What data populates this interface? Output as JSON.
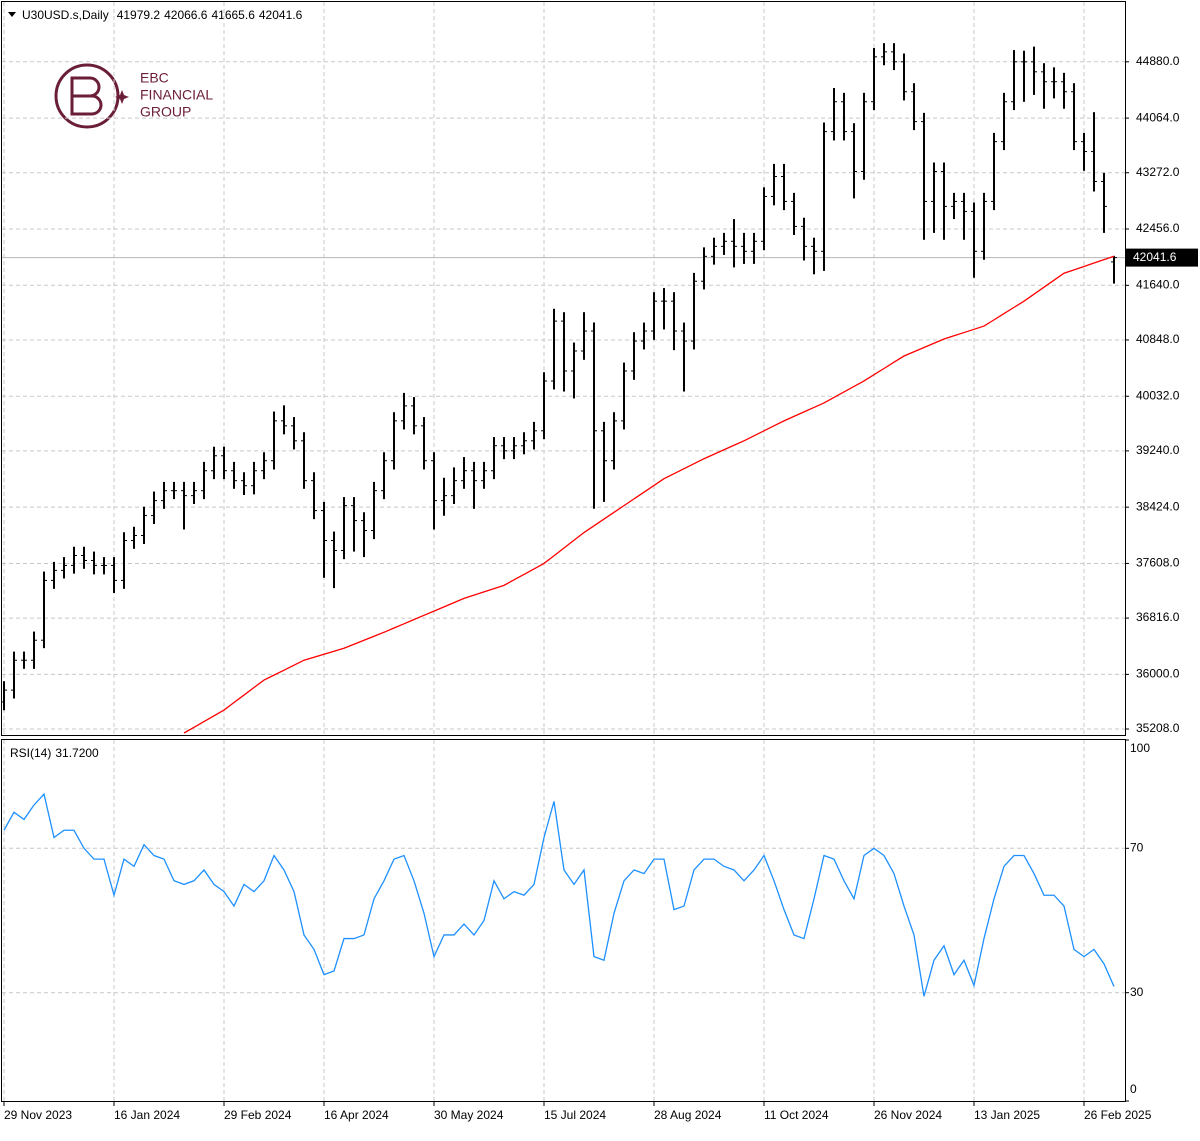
{
  "chart_data": {
    "type": "ohlc",
    "symbol": "U30USD.s,Daily",
    "logo": [
      "EBC",
      "FINANCIAL",
      "GROUP"
    ],
    "categories": [
      "29 Nov 2023",
      null,
      null,
      null,
      null,
      null,
      null,
      null,
      null,
      null,
      null,
      "16 Jan 2024",
      null,
      null,
      null,
      null,
      null,
      null,
      null,
      null,
      null,
      null,
      "29 Feb 2024",
      null,
      null,
      null,
      null,
      null,
      null,
      null,
      null,
      null,
      "16 Apr 2024",
      null,
      null,
      null,
      null,
      null,
      null,
      null,
      null,
      null,
      null,
      "30 May 2024",
      null,
      null,
      null,
      null,
      null,
      null,
      null,
      null,
      null,
      null,
      "15 Jul 2024",
      null,
      null,
      null,
      null,
      null,
      null,
      null,
      null,
      null,
      null,
      "28 Aug 2024",
      null,
      null,
      null,
      null,
      null,
      null,
      null,
      null,
      null,
      null,
      "11 Oct 2024",
      null,
      null,
      null,
      null,
      null,
      null,
      null,
      null,
      null,
      null,
      "26 Nov 2024",
      null,
      null,
      null,
      null,
      null,
      null,
      null,
      null,
      null,
      "13 Jan 2025",
      null,
      null,
      null,
      null,
      null,
      null,
      null,
      null,
      null,
      null,
      "26 Feb 2025",
      null,
      null,
      null
    ],
    "ohlc": [
      [
        35600,
        35900,
        35480,
        35772
      ],
      [
        35772,
        36330,
        35650,
        36205
      ],
      [
        36205,
        36330,
        36080,
        36205
      ],
      [
        36205,
        36620,
        36080,
        36495
      ],
      [
        36495,
        37490,
        36380,
        37362
      ],
      [
        37362,
        37630,
        37240,
        37507
      ],
      [
        37507,
        37700,
        37390,
        37579
      ],
      [
        37579,
        37850,
        37460,
        37723
      ],
      [
        37723,
        37850,
        37530,
        37651
      ],
      [
        37651,
        37780,
        37450,
        37579
      ],
      [
        37579,
        37700,
        37450,
        37579
      ],
      [
        37579,
        37700,
        37180,
        37362
      ],
      [
        37362,
        38060,
        37240,
        37940
      ],
      [
        37940,
        38140,
        37820,
        38013
      ],
      [
        38013,
        38430,
        37890,
        38302
      ],
      [
        38302,
        38650,
        38180,
        38519
      ],
      [
        38519,
        38790,
        38400,
        38663
      ],
      [
        38663,
        38790,
        38540,
        38663
      ],
      [
        38663,
        38790,
        38100,
        38591
      ],
      [
        38591,
        38790,
        38470,
        38663
      ],
      [
        38663,
        39080,
        38540,
        38952
      ],
      [
        38952,
        39300,
        38830,
        39169
      ],
      [
        39169,
        39300,
        38830,
        38952
      ],
      [
        38952,
        39080,
        38690,
        38808
      ],
      [
        38808,
        38930,
        38600,
        38735
      ],
      [
        38735,
        39080,
        38610,
        38952
      ],
      [
        38952,
        39220,
        38830,
        39097
      ],
      [
        39097,
        39810,
        38970,
        39675
      ],
      [
        39675,
        39900,
        39480,
        39603
      ],
      [
        39603,
        39730,
        39260,
        39386
      ],
      [
        39386,
        39510,
        38690,
        38808
      ],
      [
        38808,
        38930,
        38250,
        38374
      ],
      [
        38374,
        38500,
        37400,
        37940
      ],
      [
        37940,
        38070,
        37250,
        37796
      ],
      [
        37796,
        38570,
        37670,
        38446
      ],
      [
        38446,
        38570,
        37780,
        38229
      ],
      [
        38229,
        38350,
        37700,
        38085
      ],
      [
        38085,
        38790,
        37960,
        38663
      ],
      [
        38663,
        39220,
        38540,
        39097
      ],
      [
        39097,
        39800,
        38970,
        39675
      ],
      [
        39675,
        40080,
        39550,
        39892
      ],
      [
        39892,
        40020,
        39480,
        39603
      ],
      [
        39603,
        39730,
        38970,
        39097
      ],
      [
        39097,
        39220,
        38100,
        38519
      ],
      [
        38519,
        38850,
        38300,
        38591
      ],
      [
        38591,
        39000,
        38470,
        38808
      ],
      [
        38808,
        39150,
        38690,
        38952
      ],
      [
        38952,
        39080,
        38400,
        38808
      ],
      [
        38808,
        39080,
        38690,
        38952
      ],
      [
        38952,
        39440,
        38830,
        39314
      ],
      [
        39314,
        39440,
        39120,
        39241
      ],
      [
        39241,
        39440,
        39120,
        39314
      ],
      [
        39314,
        39510,
        39190,
        39386
      ],
      [
        39386,
        39660,
        39260,
        39531
      ],
      [
        39531,
        40380,
        39410,
        40253
      ],
      [
        40253,
        41300,
        40130,
        41121
      ],
      [
        41121,
        41250,
        40100,
        40398
      ],
      [
        40398,
        40810,
        40000,
        40688
      ],
      [
        40688,
        41250,
        40560,
        40977
      ],
      [
        40977,
        41100,
        38400,
        39531
      ],
      [
        39531,
        39660,
        38500,
        39097
      ],
      [
        39097,
        39800,
        38970,
        39675
      ],
      [
        39675,
        40520,
        39550,
        40398
      ],
      [
        40398,
        40960,
        40270,
        40832
      ],
      [
        40832,
        41100,
        40710,
        40977
      ],
      [
        40977,
        41540,
        40850,
        41410
      ],
      [
        41410,
        41600,
        41000,
        41410
      ],
      [
        41410,
        41540,
        40700,
        40977
      ],
      [
        40977,
        41100,
        40100,
        40832
      ],
      [
        40832,
        41820,
        40710,
        41699
      ],
      [
        41699,
        42190,
        41580,
        42060
      ],
      [
        42060,
        42330,
        41940,
        42205
      ],
      [
        42205,
        42400,
        42080,
        42278
      ],
      [
        42278,
        42600,
        41900,
        42205
      ],
      [
        42205,
        42400,
        41950,
        42133
      ],
      [
        42133,
        42400,
        41950,
        42278
      ],
      [
        42278,
        43060,
        42150,
        42928
      ],
      [
        42928,
        43400,
        42800,
        43217
      ],
      [
        43217,
        43400,
        42730,
        42856
      ],
      [
        42856,
        42980,
        42370,
        42494
      ],
      [
        42494,
        42620,
        42000,
        42205
      ],
      [
        42205,
        42330,
        41800,
        42133
      ],
      [
        42133,
        44000,
        41850,
        43868
      ],
      [
        43868,
        44500,
        43740,
        44301
      ],
      [
        44301,
        44430,
        43740,
        43868
      ],
      [
        43868,
        43990,
        42900,
        43290
      ],
      [
        43290,
        44430,
        43170,
        44301
      ],
      [
        44301,
        45080,
        44180,
        44952
      ],
      [
        44952,
        45150,
        44830,
        45024
      ],
      [
        45024,
        45150,
        44760,
        44880
      ],
      [
        44880,
        45000,
        44320,
        44446
      ],
      [
        44446,
        44570,
        43890,
        44013
      ],
      [
        44013,
        44140,
        42300,
        42856
      ],
      [
        42856,
        43420,
        42400,
        43290
      ],
      [
        43290,
        43420,
        42300,
        42784
      ],
      [
        42784,
        42980,
        42600,
        42856
      ],
      [
        42856,
        42980,
        42300,
        42711
      ],
      [
        42711,
        42840,
        41750,
        42133
      ],
      [
        42133,
        42980,
        42010,
        42856
      ],
      [
        42856,
        43850,
        42730,
        43723
      ],
      [
        43723,
        44430,
        43600,
        44301
      ],
      [
        44301,
        45050,
        44180,
        44880
      ],
      [
        44880,
        45040,
        44300,
        44880
      ],
      [
        44880,
        45100,
        44400,
        44735
      ],
      [
        44735,
        44860,
        44200,
        44591
      ],
      [
        44591,
        44800,
        44350,
        44591
      ],
      [
        44591,
        44720,
        44200,
        44446
      ],
      [
        44446,
        44570,
        43600,
        43723
      ],
      [
        43723,
        43850,
        43300,
        43579
      ],
      [
        43579,
        44150,
        43000,
        43145
      ],
      [
        43145,
        43270,
        42400,
        42784
      ],
      [
        41979.2,
        42066.6,
        41665.6,
        42041.6
      ]
    ],
    "bar_color": "#000000",
    "ma": {
      "color": "#ff0000",
      "values": [
        null,
        null,
        null,
        null,
        null,
        null,
        null,
        null,
        null,
        null,
        null,
        null,
        null,
        null,
        null,
        null,
        null,
        null,
        35150,
        35233,
        35316,
        35400,
        35483,
        35592,
        35700,
        35809,
        35917,
        35989,
        36061,
        36133,
        36205,
        36248,
        36292,
        36335,
        36379,
        36437,
        36495,
        36552,
        36610,
        36672,
        36733,
        36795,
        36856,
        36917,
        36978,
        37040,
        37101,
        37148,
        37196,
        37243,
        37290,
        37370,
        37449,
        37529,
        37608,
        37720,
        37832,
        37944,
        38056,
        38154,
        38251,
        38349,
        38446,
        38544,
        38641,
        38739,
        38837,
        38909,
        38982,
        39054,
        39126,
        39191,
        39256,
        39321,
        39386,
        39458,
        39531,
        39603,
        39675,
        39740,
        39805,
        39870,
        39935,
        40015,
        40094,
        40174,
        40253,
        40344,
        40434,
        40525,
        40615,
        40677,
        40738,
        40800,
        40861,
        40908,
        40955,
        41002,
        41049,
        41139,
        41230,
        41320,
        41410,
        41511,
        41613,
        41714,
        41815,
        41864,
        41913,
        41963,
        42012,
        42061
      ]
    },
    "ylim": [
      35121,
      45747
    ],
    "yticks": [
      {
        "value": 35208,
        "label": "35208.0"
      },
      {
        "value": 36000,
        "label": "36000.0"
      },
      {
        "value": 36816,
        "label": "36816.0"
      },
      {
        "value": 37608,
        "label": "37608.0"
      },
      {
        "value": 38424,
        "label": "38424.0"
      },
      {
        "value": 39240,
        "label": "39240.0"
      },
      {
        "value": 40032,
        "label": "40032.0"
      },
      {
        "value": 40848,
        "label": "40848.0"
      },
      {
        "value": 41640,
        "label": "41640.0"
      },
      {
        "value": 42456,
        "label": "42456.0"
      },
      {
        "value": 43272,
        "label": "43272.0"
      },
      {
        "value": 44064,
        "label": "44064.0"
      },
      {
        "value": 44880,
        "label": "44880.0"
      }
    ],
    "grid": true,
    "rsi": {
      "title": "RSI(14)",
      "last_label": "31.7200",
      "color": "#1e90ff",
      "values": [
        75,
        80,
        78,
        82,
        85,
        73,
        75,
        75,
        70,
        67,
        67,
        57,
        67,
        65,
        71,
        68,
        67,
        61,
        60,
        61,
        64,
        60,
        58,
        54,
        60,
        58,
        61,
        68,
        64,
        58,
        46,
        42,
        35,
        36,
        45,
        45,
        46,
        56,
        61,
        67,
        68,
        61,
        52,
        40,
        46,
        46,
        49,
        46,
        50,
        61,
        56,
        58,
        57,
        60,
        73,
        83,
        64,
        60,
        64,
        40,
        39,
        52,
        61,
        64,
        63,
        67,
        67,
        53,
        54,
        64,
        67,
        67,
        65,
        64,
        61,
        64,
        68,
        61,
        53,
        46,
        45,
        56,
        68,
        67,
        61,
        56,
        68,
        70,
        68,
        63,
        54,
        46,
        29,
        39,
        43,
        35,
        39,
        32,
        45,
        56,
        65,
        68,
        68,
        63,
        57,
        57,
        54,
        42,
        40,
        42,
        38,
        31.72
      ],
      "ylim": [
        0,
        100
      ],
      "yticks": [
        0,
        30,
        70,
        100
      ],
      "grid_ticks": [
        30,
        70
      ]
    }
  }
}
